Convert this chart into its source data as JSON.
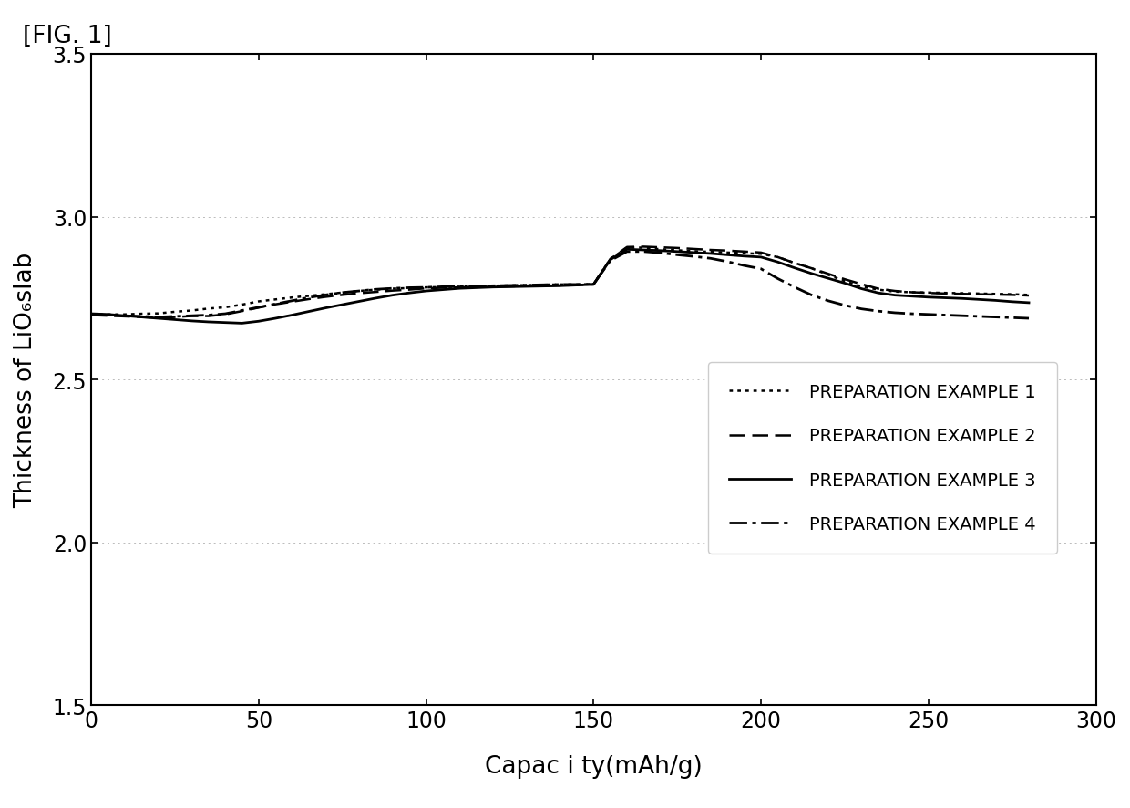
{
  "fig_label": "[FIG. 1]",
  "xlabel": "Capac i ty(mAh/g)",
  "ylabel_top": "Thickness of LiO",
  "ylabel_sub": "6",
  "ylabel_bot": "slab",
  "xlim": [
    0,
    300
  ],
  "ylim": [
    1.5,
    3.5
  ],
  "xticks": [
    0,
    50,
    100,
    150,
    200,
    250,
    300
  ],
  "yticks": [
    1.5,
    2.0,
    2.5,
    3.0,
    3.5
  ],
  "grid_yticks": [
    2.0,
    2.5,
    3.0
  ],
  "background_color": "#ffffff",
  "series": [
    {
      "label": "PREPARATION EXAMPLE 1",
      "style": "dotted",
      "color": "#000000",
      "linewidth": 1.8,
      "x": [
        0,
        5,
        10,
        15,
        20,
        25,
        30,
        35,
        40,
        45,
        50,
        55,
        60,
        65,
        70,
        75,
        80,
        85,
        90,
        95,
        100,
        105,
        110,
        115,
        120,
        125,
        130,
        135,
        140,
        145,
        150,
        155,
        160,
        165,
        170,
        175,
        180,
        185,
        190,
        195,
        200,
        205,
        210,
        215,
        220,
        225,
        230,
        235,
        240,
        245,
        250,
        255,
        260,
        265,
        270,
        275,
        280
      ],
      "y": [
        2.7,
        2.7,
        2.7,
        2.702,
        2.703,
        2.708,
        2.712,
        2.718,
        2.722,
        2.73,
        2.74,
        2.746,
        2.752,
        2.757,
        2.762,
        2.767,
        2.772,
        2.776,
        2.779,
        2.781,
        2.783,
        2.784,
        2.785,
        2.787,
        2.788,
        2.789,
        2.79,
        2.791,
        2.792,
        2.792,
        2.793,
        2.87,
        2.905,
        2.905,
        2.9,
        2.897,
        2.894,
        2.892,
        2.89,
        2.888,
        2.886,
        2.876,
        2.858,
        2.842,
        2.822,
        2.802,
        2.786,
        2.776,
        2.77,
        2.768,
        2.767,
        2.766,
        2.765,
        2.764,
        2.763,
        2.762,
        2.76
      ]
    },
    {
      "label": "PREPARATION EXAMPLE 2",
      "style": "dashed",
      "color": "#000000",
      "linewidth": 1.8,
      "x": [
        0,
        5,
        10,
        15,
        20,
        25,
        30,
        35,
        40,
        45,
        50,
        55,
        60,
        65,
        70,
        75,
        80,
        85,
        90,
        95,
        100,
        105,
        110,
        115,
        120,
        125,
        130,
        135,
        140,
        145,
        150,
        155,
        160,
        165,
        170,
        175,
        180,
        185,
        190,
        195,
        200,
        205,
        210,
        215,
        220,
        225,
        230,
        235,
        240,
        245,
        250,
        255,
        260,
        265,
        270,
        275,
        280
      ],
      "y": [
        2.698,
        2.696,
        2.694,
        2.692,
        2.69,
        2.692,
        2.695,
        2.695,
        2.7,
        2.71,
        2.721,
        2.731,
        2.739,
        2.747,
        2.754,
        2.76,
        2.765,
        2.769,
        2.773,
        2.776,
        2.78,
        2.782,
        2.783,
        2.784,
        2.785,
        2.786,
        2.787,
        2.788,
        2.789,
        2.79,
        2.792,
        2.87,
        2.907,
        2.908,
        2.906,
        2.904,
        2.901,
        2.898,
        2.896,
        2.893,
        2.89,
        2.876,
        2.858,
        2.842,
        2.825,
        2.808,
        2.793,
        2.779,
        2.772,
        2.768,
        2.766,
        2.764,
        2.763,
        2.762,
        2.761,
        2.76,
        2.758
      ]
    },
    {
      "label": "PREPARATION EXAMPLE 3",
      "style": "solid",
      "color": "#000000",
      "linewidth": 2.0,
      "x": [
        0,
        5,
        10,
        15,
        20,
        25,
        30,
        35,
        40,
        45,
        50,
        55,
        60,
        65,
        70,
        75,
        80,
        85,
        90,
        95,
        100,
        105,
        110,
        115,
        120,
        125,
        130,
        135,
        140,
        145,
        150,
        155,
        160,
        165,
        170,
        175,
        180,
        185,
        190,
        195,
        200,
        205,
        210,
        215,
        220,
        225,
        230,
        235,
        240,
        245,
        250,
        255,
        260,
        265,
        270,
        275,
        280
      ],
      "y": [
        2.702,
        2.7,
        2.696,
        2.692,
        2.688,
        2.684,
        2.68,
        2.677,
        2.675,
        2.673,
        2.679,
        2.688,
        2.698,
        2.709,
        2.72,
        2.73,
        2.74,
        2.75,
        2.759,
        2.766,
        2.772,
        2.776,
        2.78,
        2.782,
        2.784,
        2.785,
        2.786,
        2.787,
        2.788,
        2.79,
        2.792,
        2.868,
        2.9,
        2.898,
        2.896,
        2.893,
        2.89,
        2.887,
        2.883,
        2.879,
        2.876,
        2.861,
        2.843,
        2.826,
        2.811,
        2.796,
        2.779,
        2.766,
        2.759,
        2.756,
        2.753,
        2.751,
        2.749,
        2.746,
        2.743,
        2.739,
        2.736
      ]
    },
    {
      "label": "PREPARATION EXAMPLE 4",
      "style": "dashdot",
      "color": "#000000",
      "linewidth": 2.0,
      "x": [
        0,
        5,
        10,
        15,
        20,
        25,
        30,
        35,
        40,
        45,
        50,
        55,
        60,
        65,
        70,
        75,
        80,
        85,
        90,
        95,
        100,
        105,
        110,
        115,
        120,
        125,
        130,
        135,
        140,
        145,
        150,
        155,
        160,
        165,
        170,
        175,
        180,
        185,
        190,
        195,
        200,
        205,
        210,
        215,
        220,
        225,
        230,
        235,
        240,
        245,
        250,
        255,
        260,
        265,
        270,
        275,
        280
      ],
      "y": [
        2.7,
        2.698,
        2.696,
        2.694,
        2.692,
        2.694,
        2.696,
        2.698,
        2.702,
        2.712,
        2.722,
        2.732,
        2.742,
        2.752,
        2.76,
        2.767,
        2.772,
        2.777,
        2.78,
        2.782,
        2.783,
        2.785,
        2.786,
        2.787,
        2.788,
        2.789,
        2.79,
        2.791,
        2.792,
        2.792,
        2.793,
        2.865,
        2.893,
        2.893,
        2.889,
        2.883,
        2.878,
        2.872,
        2.862,
        2.85,
        2.84,
        2.81,
        2.784,
        2.76,
        2.742,
        2.728,
        2.717,
        2.71,
        2.705,
        2.702,
        2.7,
        2.698,
        2.696,
        2.694,
        2.692,
        2.69,
        2.688
      ]
    }
  ],
  "font_family": "DejaVu Sans",
  "axis_fontsize": 17,
  "label_fontsize": 19,
  "legend_fontsize": 14,
  "figlabel_fontsize": 19
}
